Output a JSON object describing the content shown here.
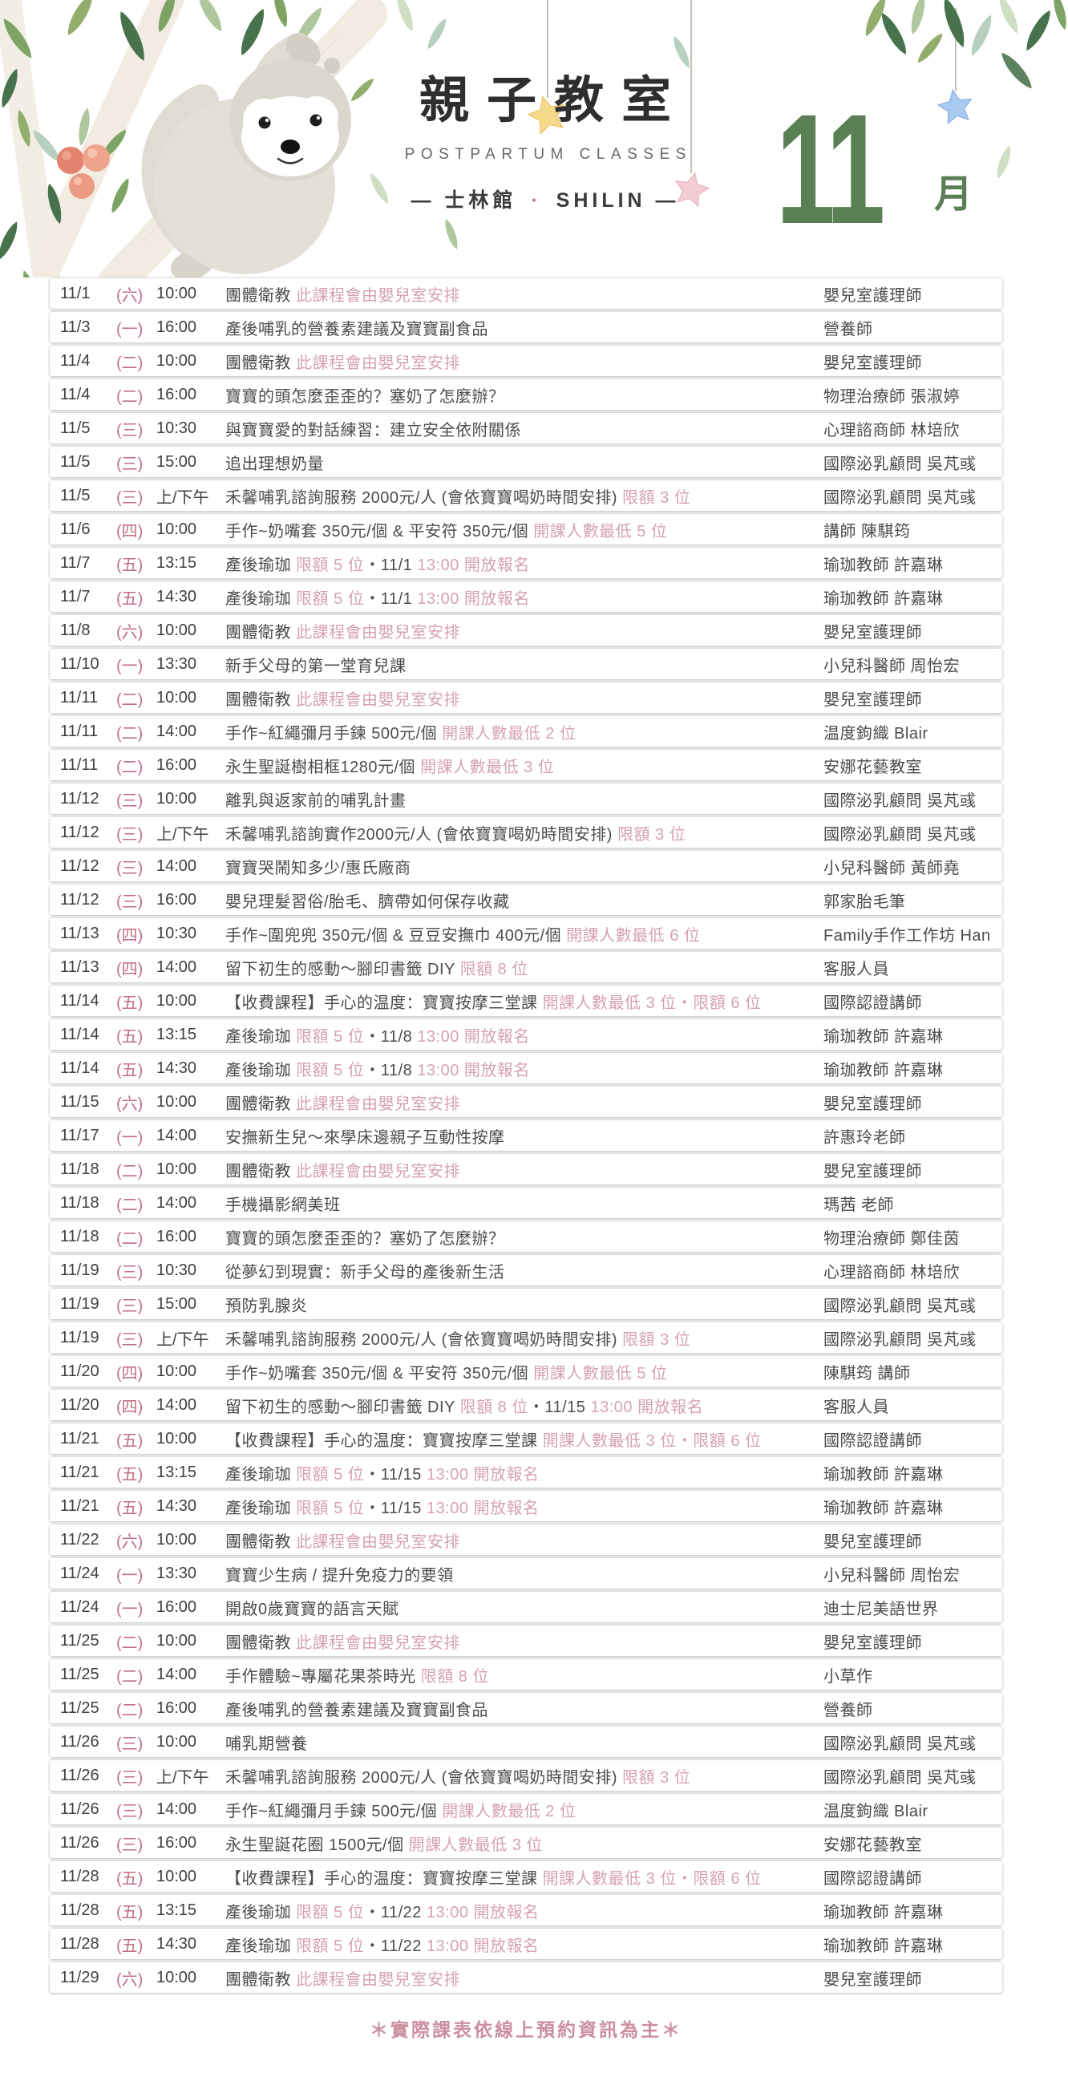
{
  "header": {
    "title": "親子教室",
    "subtitle": "POSTPARTUM CLASSES",
    "venue_left": "— 士林館",
    "venue_dot": "·",
    "venue_right": "SHILIN —",
    "month_number": "11",
    "month_unit": "月"
  },
  "colors": {
    "month_green": "#5b7f54",
    "weekday_pink": "#c06e82",
    "annotation_pink": "#d5a2b0",
    "body_text": "#4c4c4c",
    "footer_pink": "#cb8fa0"
  },
  "icons": {
    "sloth": "sloth-illustration",
    "stars": [
      "yellow-star",
      "pink-star",
      "blue-star"
    ],
    "foliage": "leaf-decorations"
  },
  "footer": {
    "note": "＊實際課表依線上預約資訊為主＊"
  },
  "schedule": {
    "rows": [
      {
        "date": "11/1",
        "weekday": "(六)",
        "time": "10:00",
        "title": [
          {
            "t": "團體衛教 "
          },
          {
            "t": "此課程會由嬰兒室安排",
            "pink": true
          }
        ],
        "instructor": "嬰兒室護理師"
      },
      {
        "date": "11/3",
        "weekday": "(一)",
        "time": "16:00",
        "title": [
          {
            "t": "產後哺乳的營養素建議及寶寶副食品"
          }
        ],
        "instructor": "營養師"
      },
      {
        "date": "11/4",
        "weekday": "(二)",
        "time": "10:00",
        "title": [
          {
            "t": "團體衛教 "
          },
          {
            "t": "此課程會由嬰兒室安排",
            "pink": true
          }
        ],
        "instructor": "嬰兒室護理師"
      },
      {
        "date": "11/4",
        "weekday": "(二)",
        "time": "16:00",
        "title": [
          {
            "t": "寶寶的頭怎麼歪歪的？塞奶了怎麼辦？"
          }
        ],
        "instructor": "物理治療師 張淑婷"
      },
      {
        "date": "11/5",
        "weekday": "(三)",
        "time": "10:30",
        "title": [
          {
            "t": "與寶寶愛的對話練習：建立安全依附關係"
          }
        ],
        "instructor": "心理諮商師 林培欣"
      },
      {
        "date": "11/5",
        "weekday": "(三)",
        "time": "15:00",
        "title": [
          {
            "t": "追出理想奶量"
          }
        ],
        "instructor": "國際泌乳顧問 吳芃彧"
      },
      {
        "date": "11/5",
        "weekday": "(三)",
        "time": "上/下午",
        "title": [
          {
            "t": "禾馨哺乳諮詢服務 2000元/人 (會依寶寶喝奶時間安排) "
          },
          {
            "t": "限額 3 位",
            "pink": true
          }
        ],
        "instructor": "國際泌乳顧問 吳芃彧"
      },
      {
        "date": "11/6",
        "weekday": "(四)",
        "time": "10:00",
        "title": [
          {
            "t": "手作~奶嘴套 350元/個 & 平安符 350元/個 "
          },
          {
            "t": "開課人數最低 5 位",
            "pink": true
          }
        ],
        "instructor": "講師 陳騏筠"
      },
      {
        "date": "11/7",
        "weekday": "(五)",
        "time": "13:15",
        "title": [
          {
            "t": "產後瑜珈 "
          },
          {
            "t": "限額 5 位",
            "pink": true
          },
          {
            "t": "・11/1 "
          },
          {
            "t": "13:00 開放報名",
            "pink": true
          }
        ],
        "instructor": "瑜珈教師 許嘉琳"
      },
      {
        "date": "11/7",
        "weekday": "(五)",
        "time": "14:30",
        "title": [
          {
            "t": "產後瑜珈 "
          },
          {
            "t": "限額 5 位",
            "pink": true
          },
          {
            "t": "・11/1 "
          },
          {
            "t": "13:00 開放報名",
            "pink": true
          }
        ],
        "instructor": "瑜珈教師 許嘉琳"
      },
      {
        "date": "11/8",
        "weekday": "(六)",
        "time": "10:00",
        "title": [
          {
            "t": "團體衛教 "
          },
          {
            "t": "此課程會由嬰兒室安排",
            "pink": true
          }
        ],
        "instructor": "嬰兒室護理師"
      },
      {
        "date": "11/10",
        "weekday": "(一)",
        "time": "13:30",
        "title": [
          {
            "t": "新手父母的第一堂育兒課"
          }
        ],
        "instructor": "小兒科醫師 周怡宏"
      },
      {
        "date": "11/11",
        "weekday": "(二)",
        "time": "10:00",
        "title": [
          {
            "t": "團體衛教 "
          },
          {
            "t": "此課程會由嬰兒室安排",
            "pink": true
          }
        ],
        "instructor": "嬰兒室護理師"
      },
      {
        "date": "11/11",
        "weekday": "(二)",
        "time": "14:00",
        "title": [
          {
            "t": "手作~紅繩彌月手鍊 500元/個 "
          },
          {
            "t": "開課人數最低 2 位",
            "pink": true
          }
        ],
        "instructor": "温度鉤織 Blair"
      },
      {
        "date": "11/11",
        "weekday": "(二)",
        "time": "16:00",
        "title": [
          {
            "t": "永生聖誕樹相框1280元/個 "
          },
          {
            "t": "開課人數最低 3 位",
            "pink": true
          }
        ],
        "instructor": "安娜花藝教室"
      },
      {
        "date": "11/12",
        "weekday": "(三)",
        "time": "10:00",
        "title": [
          {
            "t": "離乳與返家前的哺乳計畫"
          }
        ],
        "instructor": "國際泌乳顧問 吳芃彧"
      },
      {
        "date": "11/12",
        "weekday": "(三)",
        "time": "上/下午",
        "title": [
          {
            "t": "禾馨哺乳諮詢實作2000元/人 (會依寶寶喝奶時間安排) "
          },
          {
            "t": "限額 3 位",
            "pink": true
          }
        ],
        "instructor": "國際泌乳顧問 吳芃彧"
      },
      {
        "date": "11/12",
        "weekday": "(三)",
        "time": "14:00",
        "title": [
          {
            "t": "寶寶哭鬧知多少/惠氏廠商"
          }
        ],
        "instructor": "小兒科醫師 黃師堯"
      },
      {
        "date": "11/12",
        "weekday": "(三)",
        "time": "16:00",
        "title": [
          {
            "t": "嬰兒理髮習俗/胎毛、臍帶如何保存收藏"
          }
        ],
        "instructor": "郭家胎毛筆"
      },
      {
        "date": "11/13",
        "weekday": "(四)",
        "time": "10:30",
        "title": [
          {
            "t": "手作~圍兜兜 350元/個 & 豆豆安撫巾 400元/個 "
          },
          {
            "t": "開課人數最低 6 位",
            "pink": true
          }
        ],
        "instructor": "Family手作工作坊 Han"
      },
      {
        "date": "11/13",
        "weekday": "(四)",
        "time": "14:00",
        "title": [
          {
            "t": "留下初生的感動～腳印書籤 DIY "
          },
          {
            "t": "限額 8 位",
            "pink": true
          }
        ],
        "instructor": "客服人員"
      },
      {
        "date": "11/14",
        "weekday": "(五)",
        "time": "10:00",
        "title": [
          {
            "t": "【收費課程】手心的温度：寶寶按摩三堂課 "
          },
          {
            "t": "開課人數最低 3 位・限額 6 位",
            "pink": true
          }
        ],
        "instructor": "國際認證講師"
      },
      {
        "date": "11/14",
        "weekday": "(五)",
        "time": "13:15",
        "title": [
          {
            "t": "產後瑜珈 "
          },
          {
            "t": "限額 5 位",
            "pink": true
          },
          {
            "t": "・11/8 "
          },
          {
            "t": "13:00 開放報名",
            "pink": true
          }
        ],
        "instructor": "瑜珈教師 許嘉琳"
      },
      {
        "date": "11/14",
        "weekday": "(五)",
        "time": "14:30",
        "title": [
          {
            "t": "產後瑜珈 "
          },
          {
            "t": "限額 5 位",
            "pink": true
          },
          {
            "t": "・11/8 "
          },
          {
            "t": "13:00 開放報名",
            "pink": true
          }
        ],
        "instructor": "瑜珈教師 許嘉琳"
      },
      {
        "date": "11/15",
        "weekday": "(六)",
        "time": "10:00",
        "title": [
          {
            "t": "團體衛教 "
          },
          {
            "t": "此課程會由嬰兒室安排",
            "pink": true
          }
        ],
        "instructor": "嬰兒室護理師"
      },
      {
        "date": "11/17",
        "weekday": "(一)",
        "time": "14:00",
        "title": [
          {
            "t": "安撫新生兒～來學床邊親子互動性按摩"
          }
        ],
        "instructor": "許惠玲老師"
      },
      {
        "date": "11/18",
        "weekday": "(二)",
        "time": "10:00",
        "title": [
          {
            "t": "團體衛教 "
          },
          {
            "t": "此課程會由嬰兒室安排",
            "pink": true
          }
        ],
        "instructor": "嬰兒室護理師"
      },
      {
        "date": "11/18",
        "weekday": "(二)",
        "time": "14:00",
        "title": [
          {
            "t": "手機攝影網美班"
          }
        ],
        "instructor": "瑪茜 老師"
      },
      {
        "date": "11/18",
        "weekday": "(二)",
        "time": "16:00",
        "title": [
          {
            "t": "寶寶的頭怎麼歪歪的？塞奶了怎麼辦？"
          }
        ],
        "instructor": "物理治療師 鄭佳茵"
      },
      {
        "date": "11/19",
        "weekday": "(三)",
        "time": "10:30",
        "title": [
          {
            "t": "從夢幻到現實：新手父母的產後新生活"
          }
        ],
        "instructor": "心理諮商師 林培欣"
      },
      {
        "date": "11/19",
        "weekday": "(三)",
        "time": "15:00",
        "title": [
          {
            "t": "預防乳腺炎"
          }
        ],
        "instructor": "國際泌乳顧問 吳芃彧"
      },
      {
        "date": "11/19",
        "weekday": "(三)",
        "time": "上/下午",
        "title": [
          {
            "t": "禾馨哺乳諮詢服務 2000元/人 (會依寶寶喝奶時間安排) "
          },
          {
            "t": "限額 3 位",
            "pink": true
          }
        ],
        "instructor": "國際泌乳顧問 吳芃彧"
      },
      {
        "date": "11/20",
        "weekday": "(四)",
        "time": "10:00",
        "title": [
          {
            "t": "手作~奶嘴套 350元/個 & 平安符 350元/個 "
          },
          {
            "t": "開課人數最低 5 位",
            "pink": true
          }
        ],
        "instructor": "陳騏筠 講師"
      },
      {
        "date": "11/20",
        "weekday": "(四)",
        "time": "14:00",
        "title": [
          {
            "t": "留下初生的感動～腳印書籤 DIY "
          },
          {
            "t": "限額 8 位",
            "pink": true
          },
          {
            "t": "・11/15 "
          },
          {
            "t": "13:00 開放報名",
            "pink": true
          }
        ],
        "instructor": "客服人員"
      },
      {
        "date": "11/21",
        "weekday": "(五)",
        "time": "10:00",
        "title": [
          {
            "t": "【收費課程】手心的温度：寶寶按摩三堂課 "
          },
          {
            "t": "開課人數最低 3 位・限額 6 位",
            "pink": true
          }
        ],
        "instructor": "國際認證講師"
      },
      {
        "date": "11/21",
        "weekday": "(五)",
        "time": "13:15",
        "title": [
          {
            "t": "產後瑜珈 "
          },
          {
            "t": "限額 5 位",
            "pink": true
          },
          {
            "t": "・11/15 "
          },
          {
            "t": "13:00 開放報名",
            "pink": true
          }
        ],
        "instructor": "瑜珈教師 許嘉琳"
      },
      {
        "date": "11/21",
        "weekday": "(五)",
        "time": "14:30",
        "title": [
          {
            "t": "產後瑜珈 "
          },
          {
            "t": "限額 5 位",
            "pink": true
          },
          {
            "t": "・11/15 "
          },
          {
            "t": "13:00 開放報名",
            "pink": true
          }
        ],
        "instructor": "瑜珈教師 許嘉琳"
      },
      {
        "date": "11/22",
        "weekday": "(六)",
        "time": "10:00",
        "title": [
          {
            "t": "團體衛教 "
          },
          {
            "t": "此課程會由嬰兒室安排",
            "pink": true
          }
        ],
        "instructor": "嬰兒室護理師"
      },
      {
        "date": "11/24",
        "weekday": "(一)",
        "time": "13:30",
        "title": [
          {
            "t": "寶寶少生病 / 提升免疫力的要領"
          }
        ],
        "instructor": "小兒科醫師 周怡宏"
      },
      {
        "date": "11/24",
        "weekday": "(一)",
        "time": "16:00",
        "title": [
          {
            "t": "開啟0歲寶寶的語言天賦"
          }
        ],
        "instructor": "迪士尼美語世界"
      },
      {
        "date": "11/25",
        "weekday": "(二)",
        "time": "10:00",
        "title": [
          {
            "t": "團體衛教 "
          },
          {
            "t": "此課程會由嬰兒室安排",
            "pink": true
          }
        ],
        "instructor": "嬰兒室護理師"
      },
      {
        "date": "11/25",
        "weekday": "(二)",
        "time": "14:00",
        "title": [
          {
            "t": "手作體驗~專屬花果茶時光 "
          },
          {
            "t": "限額 8 位",
            "pink": true
          }
        ],
        "instructor": "小草作"
      },
      {
        "date": "11/25",
        "weekday": "(二)",
        "time": "16:00",
        "title": [
          {
            "t": "產後哺乳的營養素建議及寶寶副食品"
          }
        ],
        "instructor": "營養師"
      },
      {
        "date": "11/26",
        "weekday": "(三)",
        "time": "10:00",
        "title": [
          {
            "t": "哺乳期營養"
          }
        ],
        "instructor": "國際泌乳顧問 吳芃彧"
      },
      {
        "date": "11/26",
        "weekday": "(三)",
        "time": "上/下午",
        "title": [
          {
            "t": "禾馨哺乳諮詢服務 2000元/人 (會依寶寶喝奶時間安排) "
          },
          {
            "t": "限額 3 位",
            "pink": true
          }
        ],
        "instructor": "國際泌乳顧問 吳芃彧"
      },
      {
        "date": "11/26",
        "weekday": "(三)",
        "time": "14:00",
        "title": [
          {
            "t": "手作~紅繩彌月手鍊 500元/個 "
          },
          {
            "t": "開課人數最低 2 位",
            "pink": true
          }
        ],
        "instructor": "温度鉤織 Blair"
      },
      {
        "date": "11/26",
        "weekday": "(三)",
        "time": "16:00",
        "title": [
          {
            "t": "永生聖誕花圈 1500元/個 "
          },
          {
            "t": "開課人數最低 3 位",
            "pink": true
          }
        ],
        "instructor": "安娜花藝教室"
      },
      {
        "date": "11/28",
        "weekday": "(五)",
        "time": "10:00",
        "title": [
          {
            "t": "【收費課程】手心的温度：寶寶按摩三堂課 "
          },
          {
            "t": "開課人數最低 3 位・限額 6 位",
            "pink": true
          }
        ],
        "instructor": "國際認證講師"
      },
      {
        "date": "11/28",
        "weekday": "(五)",
        "time": "13:15",
        "title": [
          {
            "t": "產後瑜珈 "
          },
          {
            "t": "限額 5 位",
            "pink": true
          },
          {
            "t": "・11/22 "
          },
          {
            "t": "13:00 開放報名",
            "pink": true
          }
        ],
        "instructor": "瑜珈教師 許嘉琳"
      },
      {
        "date": "11/28",
        "weekday": "(五)",
        "time": "14:30",
        "title": [
          {
            "t": "產後瑜珈 "
          },
          {
            "t": "限額 5 位",
            "pink": true
          },
          {
            "t": "・11/22 "
          },
          {
            "t": "13:00 開放報名",
            "pink": true
          }
        ],
        "instructor": "瑜珈教師 許嘉琳"
      },
      {
        "date": "11/29",
        "weekday": "(六)",
        "time": "10:00",
        "title": [
          {
            "t": "團體衛教 "
          },
          {
            "t": "此課程會由嬰兒室安排",
            "pink": true
          }
        ],
        "instructor": "嬰兒室護理師"
      }
    ]
  }
}
